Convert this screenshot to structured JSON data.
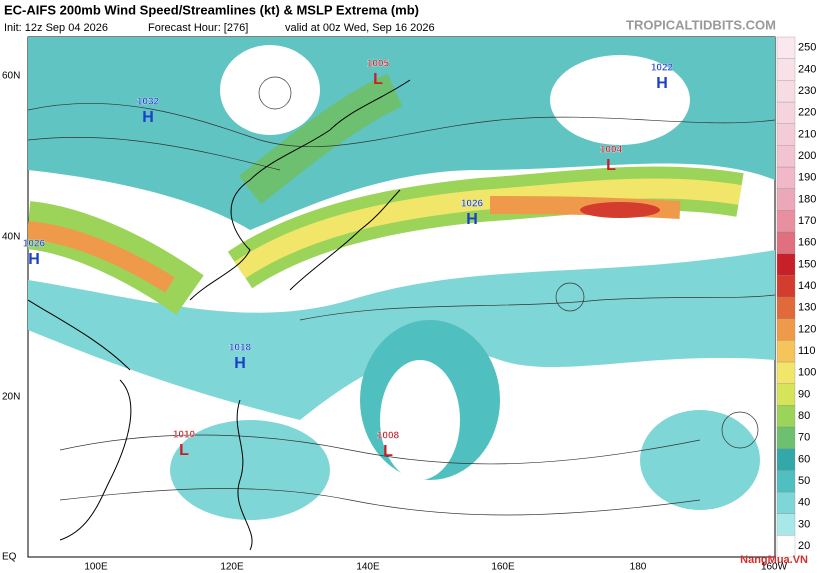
{
  "header": {
    "title": "EC-AIFS 200mb Wind Speed/Streamlines (kt) & MSLP Extrema (mb)",
    "init": "Init: 12z Sep 04 2026",
    "forecast_hour": "Forecast Hour: [276]",
    "valid": "valid at 00z Wed, Sep 16 2026",
    "source": "TROPICALTIDBITS.COM"
  },
  "map": {
    "lat_labels": [
      "60N",
      "40N",
      "20N",
      "EQ"
    ],
    "lon_labels": [
      "100E",
      "120E",
      "140E",
      "160E",
      "180",
      "160W"
    ],
    "pressure_centers": [
      {
        "type": "H",
        "value": 1032
      },
      {
        "type": "L",
        "value": 1005
      },
      {
        "type": "H",
        "value": 1022
      },
      {
        "type": "L",
        "value": 1004
      },
      {
        "type": "H",
        "value": 1026
      },
      {
        "type": "H",
        "value": 1026
      },
      {
        "type": "H",
        "value": 1018
      },
      {
        "type": "L",
        "value": 1010
      },
      {
        "type": "L",
        "value": 1008
      }
    ]
  },
  "colorbar": {
    "values": [
      20,
      30,
      40,
      50,
      60,
      70,
      80,
      90,
      100,
      110,
      120,
      130,
      140,
      150,
      160,
      170,
      180,
      190,
      200,
      210,
      220,
      230,
      240,
      250
    ],
    "colors": [
      "#ffffff",
      "#a8e8e8",
      "#7fd6d6",
      "#4fbfbf",
      "#32a8a8",
      "#6cc070",
      "#9cd45a",
      "#d6e45a",
      "#f2e66a",
      "#f5c45a",
      "#ef9a4a",
      "#e06a3a",
      "#d43c2e",
      "#c8202a",
      "#e07080",
      "#e890a0",
      "#eca8b8",
      "#f0b8c8",
      "#f2c4d2",
      "#f4ccd8",
      "#f6d4de",
      "#f8dce4",
      "#f8e2e8",
      "#fae8ee"
    ]
  },
  "watermark": "NangMua.VN"
}
